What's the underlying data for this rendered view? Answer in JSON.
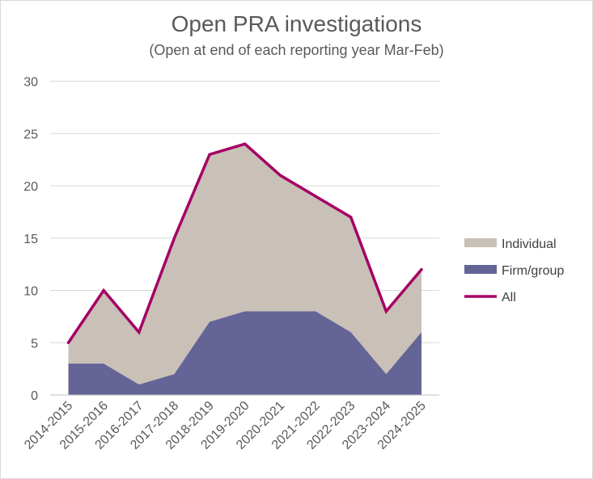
{
  "chart_data": {
    "type": "area",
    "title": "Open PRA investigations",
    "subtitle": "(Open at end of each reporting year Mar-Feb)",
    "xlabel": "",
    "ylabel": "",
    "categories": [
      "2014-2015",
      "2015-2016",
      "2016-2017",
      "2017-2018",
      "2018-2019",
      "2019-2020",
      "2020-2021",
      "2021-2022",
      "2022-2023",
      "2023-2024",
      "2024-2025"
    ],
    "ylim": [
      0,
      30
    ],
    "yticks": [
      0,
      5,
      10,
      15,
      20,
      25,
      30
    ],
    "grid": true,
    "legend_position": "right",
    "series": [
      {
        "name": "Individual",
        "kind": "stacked-area",
        "color": "#c9c0b8",
        "values": [
          2,
          7,
          5,
          13,
          16,
          16,
          13,
          11,
          11,
          6,
          6
        ]
      },
      {
        "name": "Firm/group",
        "kind": "stacked-area",
        "color": "#646496",
        "values": [
          3,
          3,
          1,
          2,
          7,
          8,
          8,
          8,
          6,
          2,
          6
        ]
      },
      {
        "name": "All",
        "kind": "line",
        "color": "#a50064",
        "values": [
          5,
          10,
          6,
          15,
          23,
          24,
          21,
          19,
          17,
          8,
          12
        ]
      }
    ]
  }
}
